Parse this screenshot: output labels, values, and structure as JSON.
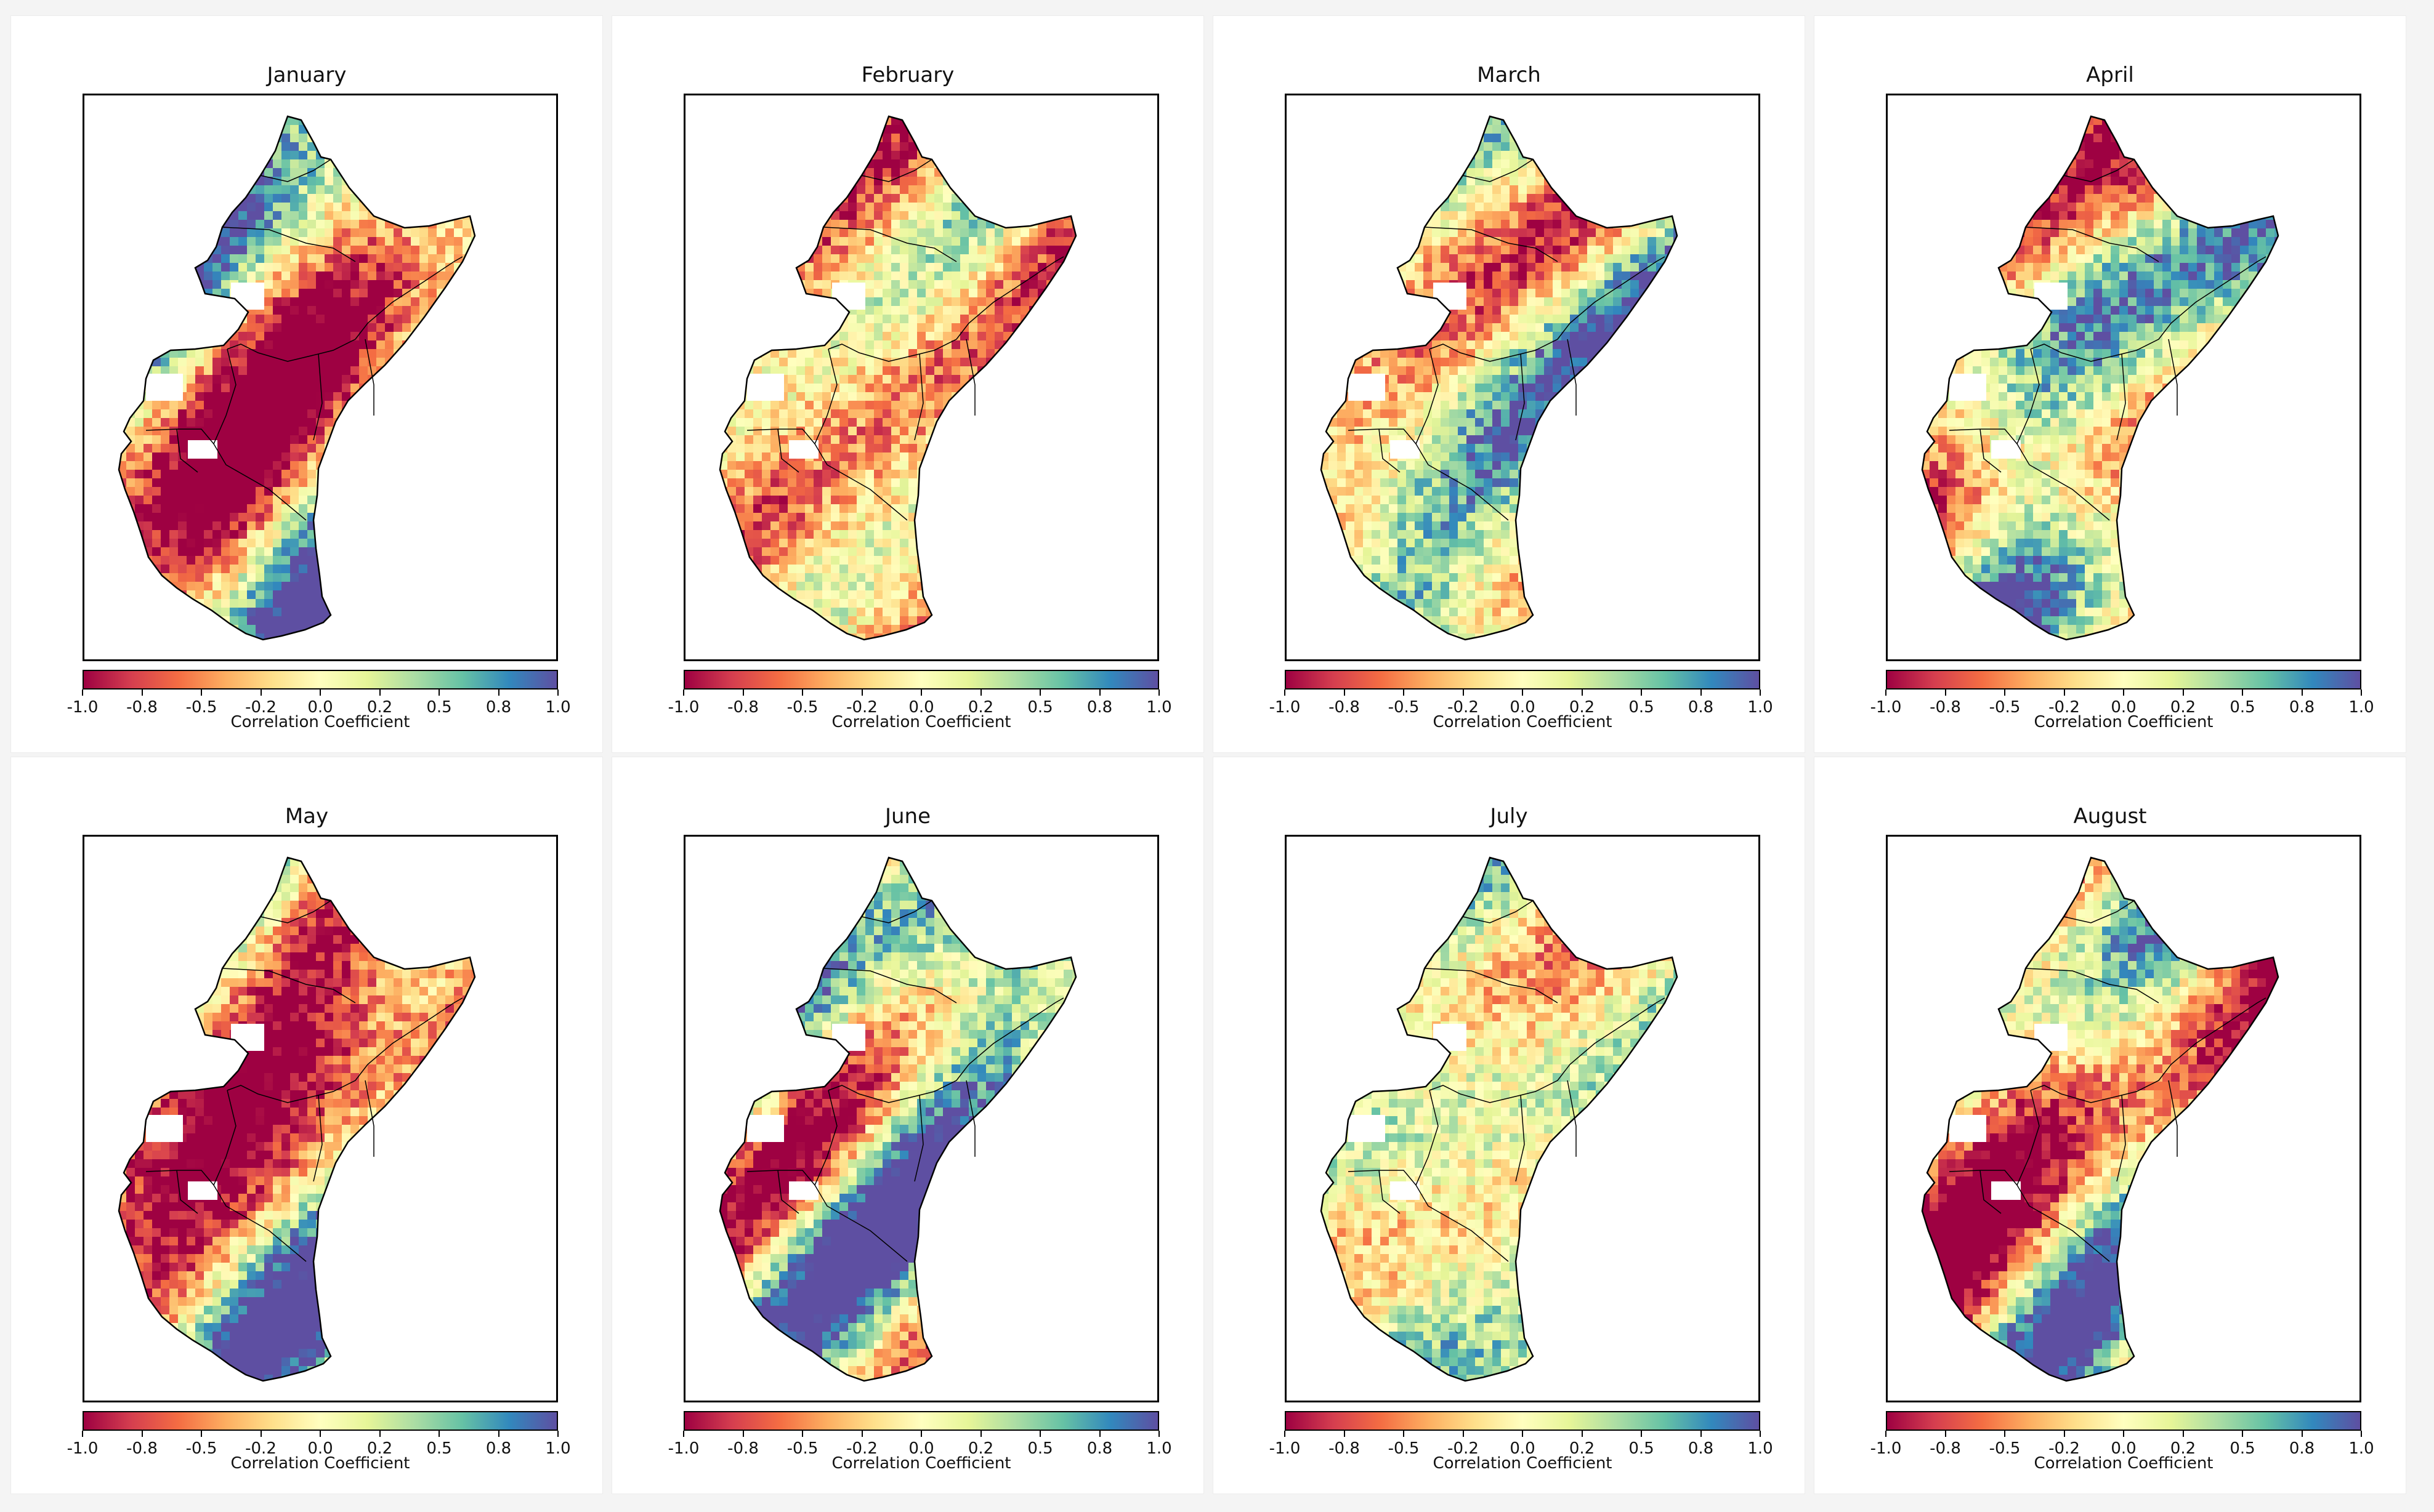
{
  "colorbar": {
    "label": "Correlation Coefficient",
    "ticks": [
      "-1.0",
      "-0.8",
      "-0.5",
      "-0.2",
      "0.0",
      "0.2",
      "0.5",
      "0.8",
      "1.0"
    ],
    "tick_values": [
      -1.0,
      -0.75,
      -0.5,
      -0.25,
      0.0,
      0.25,
      0.5,
      0.75,
      1.0
    ],
    "colormap": [
      "#9e0142",
      "#d53e4f",
      "#f46d43",
      "#fdae61",
      "#fee08b",
      "#ffffbf",
      "#e6f598",
      "#abdda4",
      "#66c2a5",
      "#3288bd",
      "#5e4fa2"
    ]
  },
  "panels": [
    {
      "title": "January"
    },
    {
      "title": "February"
    },
    {
      "title": "March"
    },
    {
      "title": "April"
    },
    {
      "title": "May"
    },
    {
      "title": "June"
    },
    {
      "title": "July"
    },
    {
      "title": "August"
    }
  ],
  "colors": {
    "land_outline": "#000000",
    "missing": "#ffffff"
  }
}
